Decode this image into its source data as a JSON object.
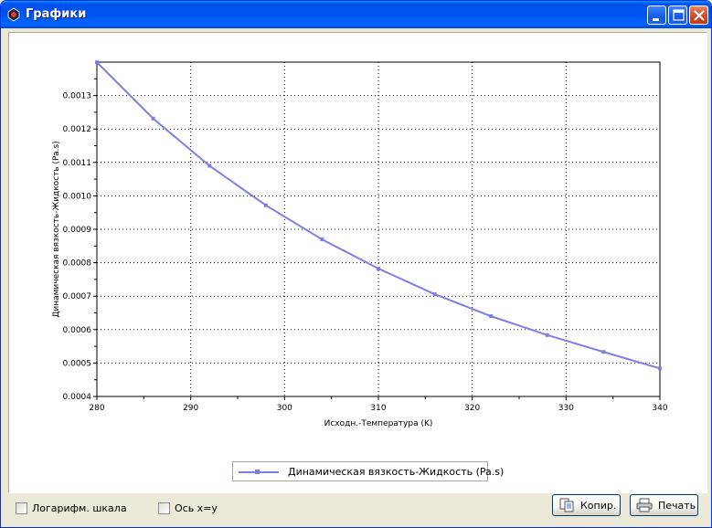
{
  "window": {
    "title": "Графики"
  },
  "chart_data": {
    "type": "line",
    "xlabel": "Исходн.-Температура (K)",
    "ylabel": "Динамическая вязкость-Жидкость (Pa.s)",
    "xlim": [
      280,
      340
    ],
    "ylim": [
      0.0004,
      0.0014
    ],
    "x_ticks": [
      280,
      290,
      300,
      310,
      320,
      330,
      340
    ],
    "y_ticks": [
      "0.0004",
      "0.0005",
      "0.0006",
      "0.0007",
      "0.0008",
      "0.0009",
      "0.0010",
      "0.0011",
      "0.0012",
      "0.0013"
    ],
    "grid": true,
    "legend_position": "bottom-center",
    "color": "#7b7fe6",
    "series": [
      {
        "name": "Динамическая вязкость-Жидкость (Pa.s)",
        "x": [
          280,
          286,
          292,
          298,
          304,
          310,
          316,
          322,
          328,
          334,
          340
        ],
        "y": [
          0.0013995,
          0.0012311,
          0.00109,
          0.0009718,
          0.0008697,
          0.0007825,
          0.0007058,
          0.0006401,
          0.0005836,
          0.0005332,
          0.0004839
        ]
      }
    ]
  },
  "controls": {
    "log_scale_label": "Логарифм. шкала",
    "axis_xy_label": "Ось x=y",
    "copy_button": "Копир.",
    "print_button": "Печать"
  }
}
